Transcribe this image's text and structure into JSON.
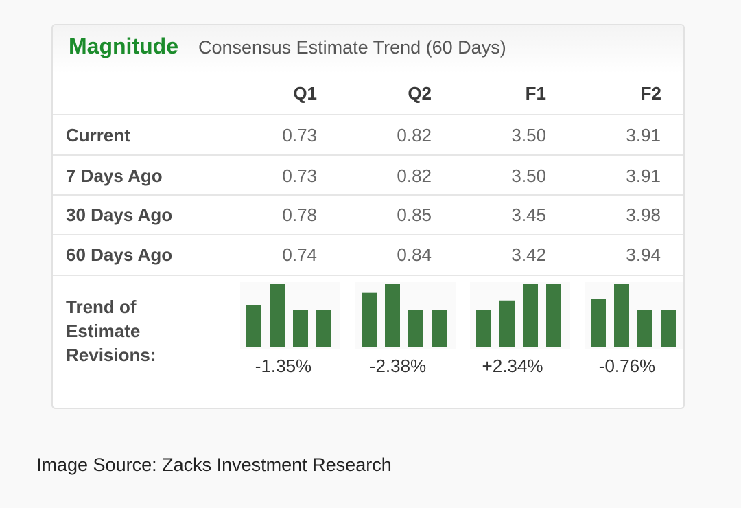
{
  "header": {
    "title_strong": "Magnitude",
    "title_rest": "Consensus Estimate Trend (60 Days)"
  },
  "chart_data": {
    "type": "table",
    "columns": [
      "Q1",
      "Q2",
      "F1",
      "F2"
    ],
    "rows": [
      {
        "label": "Current",
        "values": [
          "0.73",
          "0.82",
          "3.50",
          "3.91"
        ]
      },
      {
        "label": "7 Days Ago",
        "values": [
          "0.73",
          "0.82",
          "3.50",
          "3.91"
        ]
      },
      {
        "label": "30 Days Ago",
        "values": [
          "0.78",
          "0.85",
          "3.45",
          "3.98"
        ]
      },
      {
        "label": "60 Days Ago",
        "values": [
          "0.74",
          "0.84",
          "3.42",
          "3.94"
        ]
      }
    ],
    "trend": {
      "label_lines": [
        "Trend of",
        "Estimate",
        "Revisions:"
      ],
      "bar_order": [
        "60 Days Ago",
        "30 Days Ago",
        "7 Days Ago",
        "Current"
      ],
      "sparklines": [
        {
          "column": "Q1",
          "values": [
            0.74,
            0.78,
            0.73,
            0.73
          ],
          "change": "-1.35%"
        },
        {
          "column": "Q2",
          "values": [
            0.84,
            0.85,
            0.82,
            0.82
          ],
          "change": "-2.38%"
        },
        {
          "column": "F1",
          "values": [
            3.42,
            3.45,
            3.5,
            3.5
          ],
          "change": "+2.34%"
        },
        {
          "column": "F2",
          "values": [
            3.94,
            3.98,
            3.91,
            3.91
          ],
          "change": "-0.76%"
        }
      ],
      "bar_color": "#3d7a3f"
    }
  },
  "footer": {
    "source": "Image Source: Zacks Investment Research"
  },
  "colors": {
    "accent": "#1c8c2c",
    "bar": "#3d7a3f"
  }
}
